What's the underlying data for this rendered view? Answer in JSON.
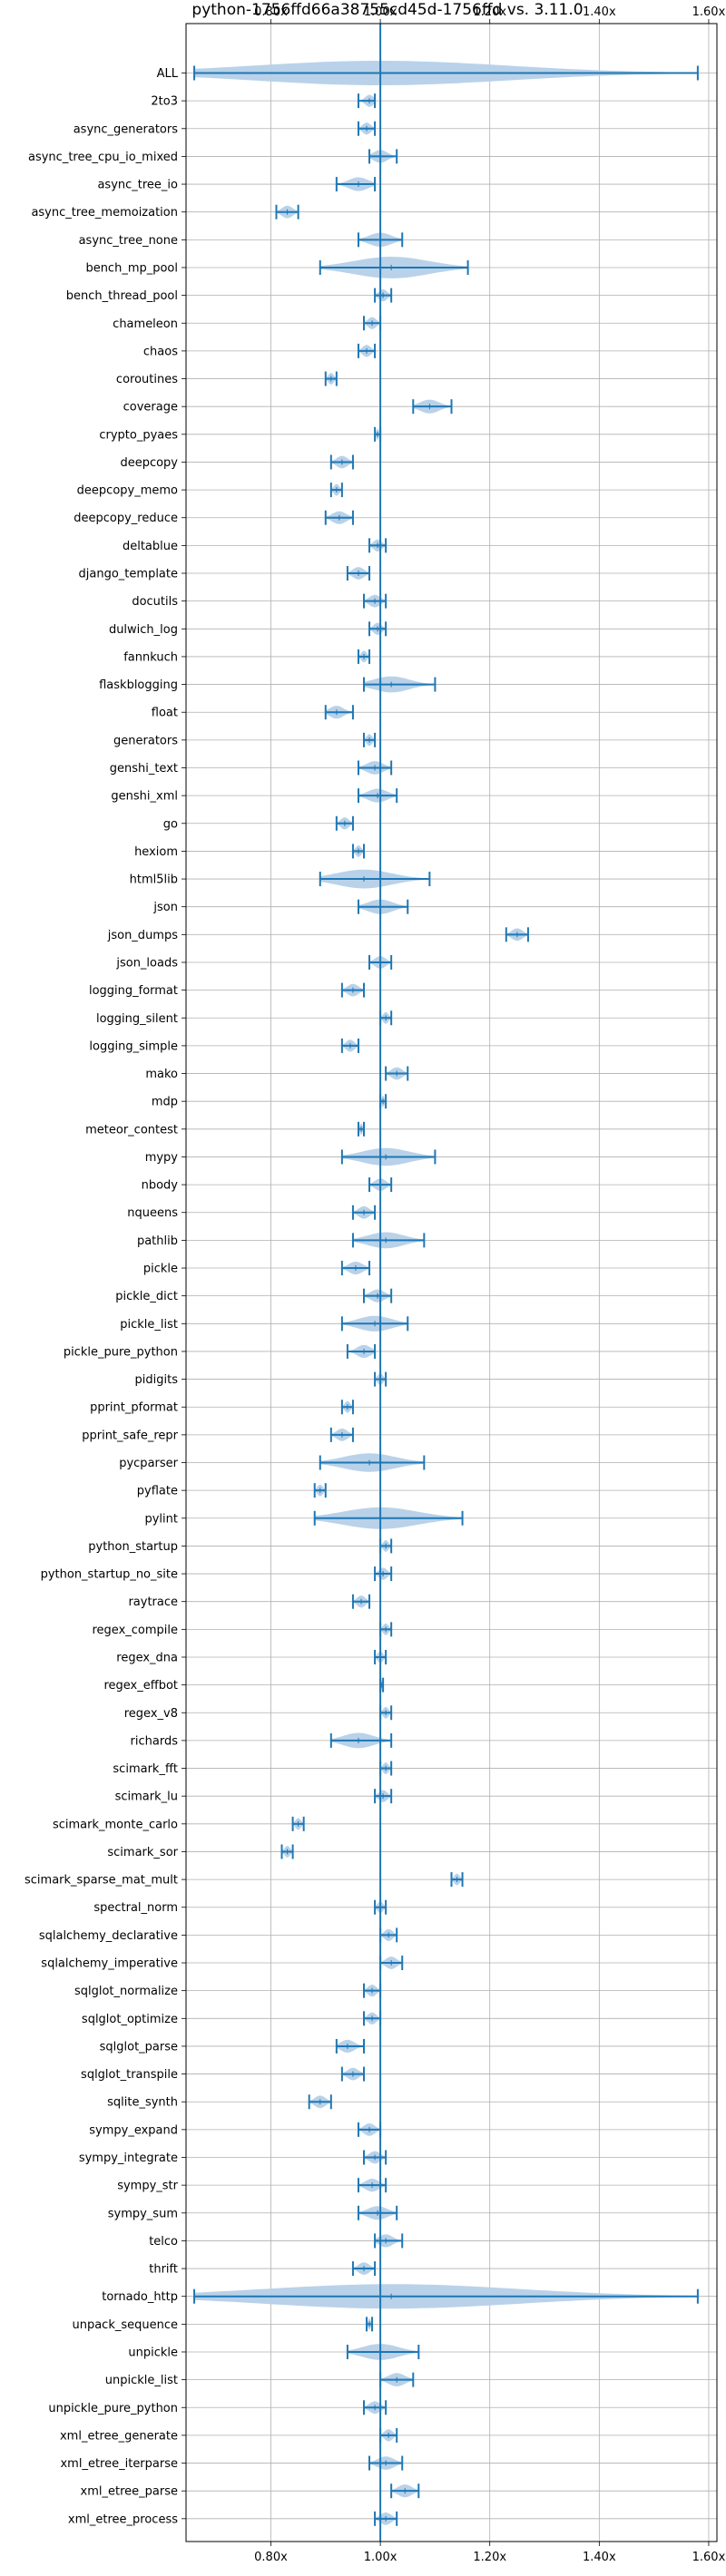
{
  "chart_data": {
    "type": "violin",
    "title": "python-1756ffd66a38755cd45d-1756ffd vs. 3.11.0",
    "xlabel": "",
    "ylabel": "",
    "xlim": [
      0.645,
      1.615
    ],
    "x_ticks": [
      0.8,
      1.0,
      1.2,
      1.4,
      1.6
    ],
    "x_tick_labels": [
      "0.80x",
      "1.00x",
      "1.20x",
      "1.40x",
      "1.60x"
    ],
    "grid": true,
    "reference_line": 1.0,
    "colors": {
      "violin": "#b5d0e8",
      "line": "#1f77b4"
    },
    "series": [
      {
        "name": "ALL",
        "min": 0.66,
        "max": 1.58,
        "median": 1.0
      },
      {
        "name": "2to3",
        "min": 0.96,
        "max": 0.99,
        "median": 0.98
      },
      {
        "name": "async_generators",
        "min": 0.96,
        "max": 0.99,
        "median": 0.975
      },
      {
        "name": "async_tree_cpu_io_mixed",
        "min": 0.98,
        "max": 1.03,
        "median": 1.0
      },
      {
        "name": "async_tree_io",
        "min": 0.92,
        "max": 0.99,
        "median": 0.96
      },
      {
        "name": "async_tree_memoization",
        "min": 0.81,
        "max": 0.85,
        "median": 0.83
      },
      {
        "name": "async_tree_none",
        "min": 0.96,
        "max": 1.04,
        "median": 1.0
      },
      {
        "name": "bench_mp_pool",
        "min": 0.89,
        "max": 1.16,
        "median": 1.02
      },
      {
        "name": "bench_thread_pool",
        "min": 0.99,
        "max": 1.02,
        "median": 1.005
      },
      {
        "name": "chameleon",
        "min": 0.97,
        "max": 1.0,
        "median": 0.985
      },
      {
        "name": "chaos",
        "min": 0.96,
        "max": 0.99,
        "median": 0.975
      },
      {
        "name": "coroutines",
        "min": 0.9,
        "max": 0.92,
        "median": 0.91
      },
      {
        "name": "coverage",
        "min": 1.06,
        "max": 1.13,
        "median": 1.09
      },
      {
        "name": "crypto_pyaes",
        "min": 0.99,
        "max": 1.0,
        "median": 0.995
      },
      {
        "name": "deepcopy",
        "min": 0.91,
        "max": 0.95,
        "median": 0.93
      },
      {
        "name": "deepcopy_memo",
        "min": 0.91,
        "max": 0.93,
        "median": 0.92
      },
      {
        "name": "deepcopy_reduce",
        "min": 0.9,
        "max": 0.95,
        "median": 0.925
      },
      {
        "name": "deltablue",
        "min": 0.98,
        "max": 1.01,
        "median": 0.995
      },
      {
        "name": "django_template",
        "min": 0.94,
        "max": 0.98,
        "median": 0.96
      },
      {
        "name": "docutils",
        "min": 0.97,
        "max": 1.01,
        "median": 0.99
      },
      {
        "name": "dulwich_log",
        "min": 0.98,
        "max": 1.01,
        "median": 0.995
      },
      {
        "name": "fannkuch",
        "min": 0.96,
        "max": 0.98,
        "median": 0.97
      },
      {
        "name": "flaskblogging",
        "min": 0.97,
        "max": 1.1,
        "median": 1.02
      },
      {
        "name": "float",
        "min": 0.9,
        "max": 0.95,
        "median": 0.92
      },
      {
        "name": "generators",
        "min": 0.97,
        "max": 0.99,
        "median": 0.98
      },
      {
        "name": "genshi_text",
        "min": 0.96,
        "max": 1.02,
        "median": 0.99
      },
      {
        "name": "genshi_xml",
        "min": 0.96,
        "max": 1.03,
        "median": 0.995
      },
      {
        "name": "go",
        "min": 0.92,
        "max": 0.95,
        "median": 0.935
      },
      {
        "name": "hexiom",
        "min": 0.95,
        "max": 0.97,
        "median": 0.96
      },
      {
        "name": "html5lib",
        "min": 0.89,
        "max": 1.09,
        "median": 0.97
      },
      {
        "name": "json",
        "min": 0.96,
        "max": 1.05,
        "median": 1.0
      },
      {
        "name": "json_dumps",
        "min": 1.23,
        "max": 1.27,
        "median": 1.25
      },
      {
        "name": "json_loads",
        "min": 0.98,
        "max": 1.02,
        "median": 1.0
      },
      {
        "name": "logging_format",
        "min": 0.93,
        "max": 0.97,
        "median": 0.95
      },
      {
        "name": "logging_silent",
        "min": 1.0,
        "max": 1.02,
        "median": 1.01
      },
      {
        "name": "logging_simple",
        "min": 0.93,
        "max": 0.96,
        "median": 0.945
      },
      {
        "name": "mako",
        "min": 1.01,
        "max": 1.05,
        "median": 1.03
      },
      {
        "name": "mdp",
        "min": 1.0,
        "max": 1.01,
        "median": 1.005
      },
      {
        "name": "meteor_contest",
        "min": 0.96,
        "max": 0.97,
        "median": 0.965
      },
      {
        "name": "mypy",
        "min": 0.93,
        "max": 1.1,
        "median": 1.01
      },
      {
        "name": "nbody",
        "min": 0.98,
        "max": 1.02,
        "median": 1.0
      },
      {
        "name": "nqueens",
        "min": 0.95,
        "max": 0.99,
        "median": 0.97
      },
      {
        "name": "pathlib",
        "min": 0.95,
        "max": 1.08,
        "median": 1.01
      },
      {
        "name": "pickle",
        "min": 0.93,
        "max": 0.98,
        "median": 0.955
      },
      {
        "name": "pickle_dict",
        "min": 0.97,
        "max": 1.02,
        "median": 0.995
      },
      {
        "name": "pickle_list",
        "min": 0.93,
        "max": 1.05,
        "median": 0.99
      },
      {
        "name": "pickle_pure_python",
        "min": 0.94,
        "max": 0.99,
        "median": 0.97
      },
      {
        "name": "pidigits",
        "min": 0.99,
        "max": 1.01,
        "median": 1.0
      },
      {
        "name": "pprint_pformat",
        "min": 0.93,
        "max": 0.95,
        "median": 0.94
      },
      {
        "name": "pprint_safe_repr",
        "min": 0.91,
        "max": 0.95,
        "median": 0.93
      },
      {
        "name": "pycparser",
        "min": 0.89,
        "max": 1.08,
        "median": 0.98
      },
      {
        "name": "pyflate",
        "min": 0.88,
        "max": 0.9,
        "median": 0.89
      },
      {
        "name": "pylint",
        "min": 0.88,
        "max": 1.15,
        "median": 1.0
      },
      {
        "name": "python_startup",
        "min": 1.0,
        "max": 1.02,
        "median": 1.01
      },
      {
        "name": "python_startup_no_site",
        "min": 0.99,
        "max": 1.02,
        "median": 1.005
      },
      {
        "name": "raytrace",
        "min": 0.95,
        "max": 0.98,
        "median": 0.965
      },
      {
        "name": "regex_compile",
        "min": 1.0,
        "max": 1.02,
        "median": 1.01
      },
      {
        "name": "regex_dna",
        "min": 0.99,
        "max": 1.01,
        "median": 1.0
      },
      {
        "name": "regex_effbot",
        "min": 1.0,
        "max": 1.005,
        "median": 1.002
      },
      {
        "name": "regex_v8",
        "min": 1.0,
        "max": 1.02,
        "median": 1.01
      },
      {
        "name": "richards",
        "min": 0.91,
        "max": 1.02,
        "median": 0.96
      },
      {
        "name": "scimark_fft",
        "min": 1.0,
        "max": 1.02,
        "median": 1.01
      },
      {
        "name": "scimark_lu",
        "min": 0.99,
        "max": 1.02,
        "median": 1.005
      },
      {
        "name": "scimark_monte_carlo",
        "min": 0.84,
        "max": 0.86,
        "median": 0.85
      },
      {
        "name": "scimark_sor",
        "min": 0.82,
        "max": 0.84,
        "median": 0.83
      },
      {
        "name": "scimark_sparse_mat_mult",
        "min": 1.13,
        "max": 1.15,
        "median": 1.14
      },
      {
        "name": "spectral_norm",
        "min": 0.99,
        "max": 1.01,
        "median": 1.0
      },
      {
        "name": "sqlalchemy_declarative",
        "min": 1.0,
        "max": 1.03,
        "median": 1.015
      },
      {
        "name": "sqlalchemy_imperative",
        "min": 1.0,
        "max": 1.04,
        "median": 1.02
      },
      {
        "name": "sqlglot_normalize",
        "min": 0.97,
        "max": 1.0,
        "median": 0.985
      },
      {
        "name": "sqlglot_optimize",
        "min": 0.97,
        "max": 1.0,
        "median": 0.985
      },
      {
        "name": "sqlglot_parse",
        "min": 0.92,
        "max": 0.97,
        "median": 0.94
      },
      {
        "name": "sqlglot_transpile",
        "min": 0.93,
        "max": 0.97,
        "median": 0.95
      },
      {
        "name": "sqlite_synth",
        "min": 0.87,
        "max": 0.91,
        "median": 0.89
      },
      {
        "name": "sympy_expand",
        "min": 0.96,
        "max": 1.0,
        "median": 0.98
      },
      {
        "name": "sympy_integrate",
        "min": 0.97,
        "max": 1.01,
        "median": 0.99
      },
      {
        "name": "sympy_str",
        "min": 0.96,
        "max": 1.01,
        "median": 0.985
      },
      {
        "name": "sympy_sum",
        "min": 0.96,
        "max": 1.03,
        "median": 0.995
      },
      {
        "name": "telco",
        "min": 0.99,
        "max": 1.04,
        "median": 1.01
      },
      {
        "name": "thrift",
        "min": 0.95,
        "max": 0.99,
        "median": 0.97
      },
      {
        "name": "tornado_http",
        "min": 0.66,
        "max": 1.58,
        "median": 1.02
      },
      {
        "name": "unpack_sequence",
        "min": 0.975,
        "max": 0.985,
        "median": 0.98
      },
      {
        "name": "unpickle",
        "min": 0.94,
        "max": 1.07,
        "median": 1.0
      },
      {
        "name": "unpickle_list",
        "min": 1.0,
        "max": 1.06,
        "median": 1.03
      },
      {
        "name": "unpickle_pure_python",
        "min": 0.97,
        "max": 1.01,
        "median": 0.99
      },
      {
        "name": "xml_etree_generate",
        "min": 1.0,
        "max": 1.03,
        "median": 1.015
      },
      {
        "name": "xml_etree_iterparse",
        "min": 0.98,
        "max": 1.04,
        "median": 1.01
      },
      {
        "name": "xml_etree_parse",
        "min": 1.02,
        "max": 1.07,
        "median": 1.045
      },
      {
        "name": "xml_etree_process",
        "min": 0.99,
        "max": 1.03,
        "median": 1.01
      }
    ]
  }
}
